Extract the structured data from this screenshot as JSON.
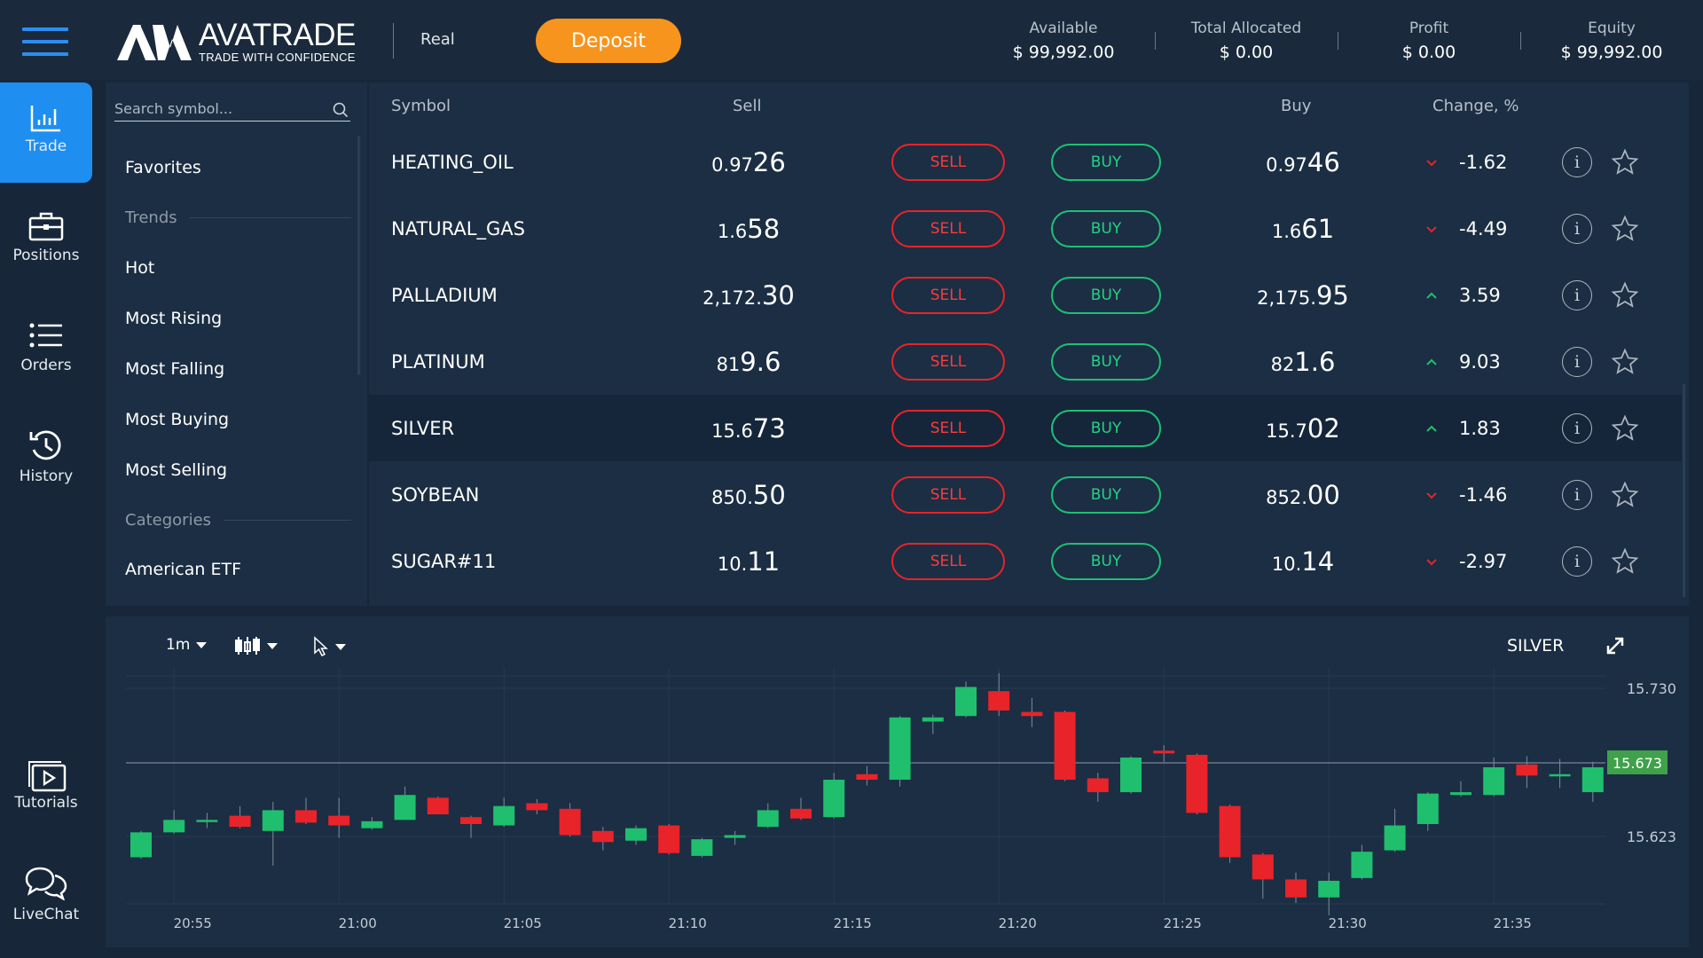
{
  "header": {
    "logo_main": "AVATRADE",
    "logo_tagline": "TRADE WITH CONFIDENCE",
    "account_type": "Real",
    "deposit_label": "Deposit",
    "stats": [
      {
        "label": "Available",
        "value": "$ 99,992.00"
      },
      {
        "label": "Total Allocated",
        "value": "$ 0.00"
      },
      {
        "label": "Profit",
        "value": "$ 0.00"
      },
      {
        "label": "Equity",
        "value": "$ 99,992.00"
      }
    ]
  },
  "nav": [
    {
      "label": "Trade",
      "icon": "bar-chart-icon",
      "active": true
    },
    {
      "label": "Positions",
      "icon": "briefcase-icon"
    },
    {
      "label": "Orders",
      "icon": "list-icon"
    },
    {
      "label": "History",
      "icon": "history-icon"
    },
    {
      "label": "Tutorials",
      "icon": "video-icon"
    },
    {
      "label": "LiveChat",
      "icon": "chat-icon"
    }
  ],
  "sidebar": {
    "search_placeholder": "Search symbol...",
    "favorites": "Favorites",
    "trends_heading": "Trends",
    "trends": [
      "Hot",
      "Most Rising",
      "Most Falling",
      "Most Buying",
      "Most Selling"
    ],
    "categories_heading": "Categories",
    "categories": [
      "American ETF"
    ]
  },
  "table": {
    "headers": {
      "symbol": "Symbol",
      "sell": "Sell",
      "buy": "Buy",
      "change": "Change, %"
    },
    "sell_label": "SELL",
    "buy_label": "BUY",
    "rows": [
      {
        "symbol": "HEATING_OIL",
        "sell_a": "0.97",
        "sell_b": "26",
        "buy_a": "0.97",
        "buy_b": "46",
        "dir": "down",
        "change": "-1.62"
      },
      {
        "symbol": "NATURAL_GAS",
        "sell_a": "1.6",
        "sell_b": "58",
        "buy_a": "1.6",
        "buy_b": "61",
        "dir": "down",
        "change": "-4.49"
      },
      {
        "symbol": "PALLADIUM",
        "sell_a": "2,172.",
        "sell_b": "30",
        "buy_a": "2,175.",
        "buy_b": "95",
        "dir": "up",
        "change": "3.59"
      },
      {
        "symbol": "PLATINUM",
        "sell_a": "81",
        "sell_b": "9.6",
        "buy_a": "82",
        "buy_b": "1.6",
        "dir": "up",
        "change": "9.03"
      },
      {
        "symbol": "SILVER",
        "sell_a": "15.6",
        "sell_b": "73",
        "buy_a": "15.7",
        "buy_b": "02",
        "dir": "up",
        "change": "1.83",
        "selected": true
      },
      {
        "symbol": "SOYBEAN",
        "sell_a": "850.",
        "sell_b": "50",
        "buy_a": "852.",
        "buy_b": "00",
        "dir": "down",
        "change": "-1.46"
      },
      {
        "symbol": "SUGAR#11",
        "sell_a": "10.",
        "sell_b": "11",
        "buy_a": "10.",
        "buy_b": "14",
        "dir": "down",
        "change": "-2.97"
      }
    ]
  },
  "chart_toolbar": {
    "interval": "1m",
    "symbol": "SILVER"
  },
  "colors": {
    "up": "#1fbf6e",
    "down": "#e8232a",
    "accent": "#1e8ff0",
    "deposit": "#f7941d"
  },
  "chart_data": {
    "type": "candlestick",
    "symbol": "SILVER",
    "interval": "1m",
    "ylim": [
      15.566,
      15.741
    ],
    "y_ticks": [
      "15.730",
      "15.623"
    ],
    "x_ticks": [
      "20:55",
      "21:00",
      "21:05",
      "21:10",
      "21:15",
      "21:20",
      "21:25",
      "21:30",
      "21:35"
    ],
    "current_price": "15.673",
    "candles": [
      [
        "20:54",
        15.608,
        15.627,
        15.607,
        15.626
      ],
      [
        "20:55",
        15.626,
        15.642,
        15.625,
        15.635
      ],
      [
        "20:56",
        15.635,
        15.64,
        15.629,
        15.635
      ],
      [
        "20:57",
        15.638,
        15.645,
        15.629,
        15.63
      ],
      [
        "20:58",
        15.627,
        15.648,
        15.602,
        15.642
      ],
      [
        "20:59",
        15.642,
        15.651,
        15.632,
        15.633
      ],
      [
        "21:00",
        15.638,
        15.651,
        15.622,
        15.631
      ],
      [
        "21:01",
        15.629,
        15.637,
        15.628,
        15.634
      ],
      [
        "21:02",
        15.635,
        15.659,
        15.635,
        15.653
      ],
      [
        "21:03",
        15.651,
        15.652,
        15.639,
        15.639
      ],
      [
        "21:04",
        15.637,
        15.638,
        15.622,
        15.632
      ],
      [
        "21:05",
        15.631,
        15.651,
        15.63,
        15.645
      ],
      [
        "21:06",
        15.647,
        15.65,
        15.639,
        15.642
      ],
      [
        "21:07",
        15.643,
        15.647,
        15.623,
        15.624
      ],
      [
        "21:08",
        15.627,
        15.63,
        15.613,
        15.619
      ],
      [
        "21:09",
        15.62,
        15.631,
        15.617,
        15.629
      ],
      [
        "21:10",
        15.631,
        15.632,
        15.61,
        15.611
      ],
      [
        "21:11",
        15.609,
        15.622,
        15.608,
        15.621
      ],
      [
        "21:12",
        15.622,
        15.627,
        15.617,
        15.624
      ],
      [
        "21:13",
        15.63,
        15.647,
        15.629,
        15.642
      ],
      [
        "21:14",
        15.643,
        15.651,
        15.635,
        15.636
      ],
      [
        "21:15",
        15.637,
        15.669,
        15.636,
        15.664
      ],
      [
        "21:16",
        15.668,
        15.674,
        15.66,
        15.664
      ],
      [
        "21:17",
        15.664,
        15.71,
        15.659,
        15.709
      ],
      [
        "21:18",
        15.706,
        15.711,
        15.697,
        15.709
      ],
      [
        "21:19",
        15.71,
        15.735,
        15.709,
        15.731
      ],
      [
        "21:20",
        15.728,
        15.741,
        15.71,
        15.714
      ],
      [
        "21:21",
        15.713,
        15.723,
        15.702,
        15.71
      ],
      [
        "21:22",
        15.713,
        15.714,
        15.663,
        15.664
      ],
      [
        "21:23",
        15.665,
        15.669,
        15.648,
        15.655
      ],
      [
        "21:24",
        15.655,
        15.681,
        15.654,
        15.68
      ],
      [
        "21:25",
        15.685,
        15.689,
        15.677,
        15.683
      ],
      [
        "21:26",
        15.682,
        15.683,
        15.639,
        15.64
      ],
      [
        "21:27",
        15.645,
        15.646,
        15.604,
        15.608
      ],
      [
        "21:28",
        15.61,
        15.611,
        15.578,
        15.592
      ],
      [
        "21:29",
        15.592,
        15.597,
        15.575,
        15.579
      ],
      [
        "21:30",
        15.579,
        15.597,
        15.566,
        15.591
      ],
      [
        "21:31",
        15.593,
        15.617,
        15.592,
        15.612
      ],
      [
        "21:32",
        15.613,
        15.643,
        15.612,
        15.631
      ],
      [
        "21:33",
        15.632,
        15.655,
        15.627,
        15.654
      ],
      [
        "21:34",
        15.653,
        15.663,
        15.652,
        15.655
      ],
      [
        "21:35",
        15.653,
        15.68,
        15.652,
        15.673
      ],
      [
        "21:36",
        15.675,
        15.681,
        15.658,
        15.667
      ],
      [
        "21:37",
        15.668,
        15.679,
        15.658,
        15.668
      ],
      [
        "21:38",
        15.655,
        15.677,
        15.648,
        15.673
      ]
    ]
  }
}
